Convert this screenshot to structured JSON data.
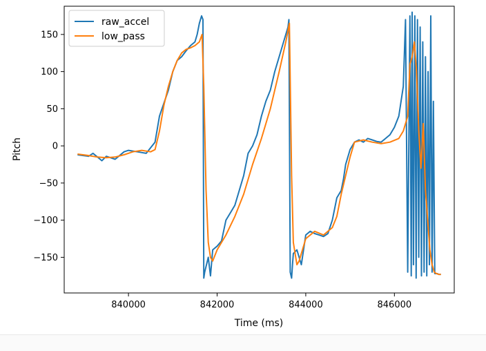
{
  "chart_data": {
    "type": "line",
    "xlabel": "Time (ms)",
    "ylabel": "Pitch",
    "xlim": [
      838550,
      847350
    ],
    "ylim": [
      -198,
      188
    ],
    "xticks": [
      840000,
      842000,
      844000,
      846000
    ],
    "xtick_labels": [
      "840000",
      "842000",
      "844000",
      "846000"
    ],
    "yticks": [
      -150,
      -100,
      -50,
      0,
      50,
      100,
      150
    ],
    "ytick_labels": [
      "−150",
      "−100",
      "−50",
      "0",
      "50",
      "100",
      "150"
    ],
    "legend_position": "upper-left",
    "grid": false,
    "series": [
      {
        "name": "raw_accel",
        "color": "#1f77b4",
        "x": [
          838850,
          839100,
          839200,
          839400,
          839500,
          839700,
          839900,
          840000,
          840200,
          840400,
          840600,
          840700,
          840900,
          841000,
          841100,
          841200,
          841300,
          841400,
          841500,
          841550,
          841600,
          841650,
          841680,
          841700,
          841720,
          841800,
          841850,
          841900,
          842000,
          842100,
          842200,
          842300,
          842400,
          842500,
          842600,
          842700,
          842800,
          842900,
          843000,
          843100,
          843200,
          843300,
          843400,
          843500,
          843600,
          843620,
          843650,
          843680,
          843700,
          843720,
          843800,
          843850,
          843900,
          844000,
          844100,
          844200,
          844300,
          844400,
          844500,
          844600,
          844700,
          844800,
          844850,
          844900,
          845000,
          845100,
          845200,
          845300,
          845400,
          845500,
          845600,
          845700,
          845800,
          845900,
          846000,
          846100,
          846200,
          846250,
          846300,
          846350,
          846380,
          846400,
          846430,
          846460,
          846490,
          846520,
          846550,
          846580,
          846610,
          846640,
          846670,
          846700,
          846730,
          846760,
          846790,
          846820,
          846850,
          846880,
          846910,
          846940,
          846970,
          847000,
          847050
        ],
        "y": [
          -12,
          -14,
          -10,
          -20,
          -14,
          -18,
          -8,
          -6,
          -8,
          -10,
          5,
          40,
          75,
          100,
          115,
          120,
          128,
          135,
          140,
          150,
          165,
          175,
          170,
          -178,
          -170,
          -150,
          -175,
          -140,
          -135,
          -128,
          -100,
          -90,
          -80,
          -60,
          -40,
          -10,
          0,
          15,
          40,
          60,
          75,
          100,
          120,
          140,
          160,
          170,
          -170,
          -178,
          -160,
          -145,
          -140,
          -150,
          -160,
          -120,
          -115,
          -118,
          -120,
          -122,
          -118,
          -100,
          -70,
          -60,
          -45,
          -25,
          -5,
          5,
          8,
          5,
          10,
          8,
          6,
          5,
          10,
          15,
          25,
          40,
          80,
          170,
          -170,
          175,
          -175,
          180,
          -160,
          175,
          -178,
          170,
          -150,
          160,
          -175,
          140,
          -170,
          120,
          -175,
          100,
          -160,
          175,
          -170,
          60,
          -172,
          -172,
          -172,
          -173,
          -173
        ]
      },
      {
        "name": "low_pass",
        "color": "#ff7f0e",
        "x": [
          838850,
          839100,
          839300,
          839500,
          839700,
          839900,
          840100,
          840300,
          840500,
          840600,
          840700,
          840800,
          840900,
          841000,
          841100,
          841200,
          841300,
          841400,
          841500,
          841600,
          841660,
          841700,
          841750,
          841800,
          841850,
          841900,
          842000,
          842200,
          842400,
          842600,
          842800,
          843000,
          843200,
          843400,
          843550,
          843630,
          843680,
          843720,
          843800,
          843850,
          843900,
          844000,
          844200,
          844400,
          844600,
          844700,
          844800,
          844900,
          845000,
          845100,
          845300,
          845500,
          845700,
          845900,
          846100,
          846200,
          846300,
          846350,
          846400,
          846450,
          846500,
          846550,
          846600,
          846650,
          846700,
          846750,
          846800,
          846850,
          846900,
          846950,
          847000,
          847050
        ],
        "y": [
          -11,
          -13,
          -15,
          -16,
          -15,
          -12,
          -8,
          -6,
          -8,
          -5,
          20,
          55,
          80,
          100,
          115,
          125,
          130,
          132,
          135,
          140,
          150,
          80,
          -60,
          -130,
          -150,
          -155,
          -140,
          -120,
          -95,
          -65,
          -25,
          10,
          50,
          100,
          140,
          165,
          -40,
          -130,
          -160,
          -155,
          -145,
          -125,
          -115,
          -120,
          -110,
          -95,
          -65,
          -40,
          -15,
          5,
          8,
          5,
          3,
          5,
          10,
          20,
          40,
          110,
          120,
          140,
          100,
          20,
          -30,
          30,
          -60,
          -100,
          -140,
          -160,
          -170,
          -172,
          -173,
          -173
        ]
      }
    ]
  }
}
